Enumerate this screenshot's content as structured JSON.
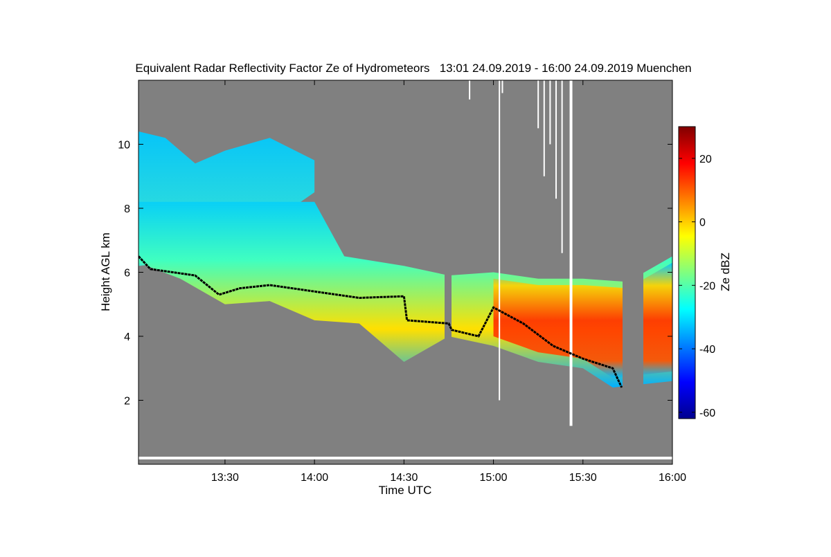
{
  "chart_data": {
    "type": "heatmap",
    "title": "Equivalent Radar Reflectivity Factor Ze of Hydrometeors   13:01 24.09.2019 - 16:00 24.09.2019 Muenchen",
    "xlabel": "Time UTC",
    "ylabel": "Height AGL km",
    "xlim": [
      "13:01",
      "16:00"
    ],
    "ylim": [
      0,
      12
    ],
    "x_ticks": [
      "13:30",
      "14:00",
      "14:30",
      "15:00",
      "15:30",
      "16:00"
    ],
    "y_ticks": [
      2,
      4,
      6,
      8,
      10
    ],
    "colorbar": {
      "label": "Ze dBZ",
      "range": [
        -62,
        30
      ],
      "ticks": [
        20,
        0,
        -20,
        -40,
        -60
      ],
      "colormap": "jet"
    },
    "background_color": "#808080",
    "cloud_top_km": [
      {
        "time": "13:01",
        "height": 10.4
      },
      {
        "time": "13:10",
        "height": 10.2
      },
      {
        "time": "13:20",
        "height": 9.4
      },
      {
        "time": "13:30",
        "height": 9.8
      },
      {
        "time": "13:45",
        "height": 10.2
      },
      {
        "time": "14:00",
        "height": 9.5
      },
      {
        "time": "14:10",
        "height": 6.5
      },
      {
        "time": "14:30",
        "height": 6.2
      },
      {
        "time": "14:45",
        "height": 5.9
      },
      {
        "time": "15:00",
        "height": 6.0
      },
      {
        "time": "15:15",
        "height": 5.8
      },
      {
        "time": "15:30",
        "height": 5.8
      },
      {
        "time": "15:45",
        "height": 5.7
      },
      {
        "time": "16:00",
        "height": 6.5
      }
    ],
    "cloud_base_km": [
      {
        "time": "13:01",
        "height": 6.3
      },
      {
        "time": "13:15",
        "height": 5.8
      },
      {
        "time": "13:30",
        "height": 5.0
      },
      {
        "time": "13:45",
        "height": 5.1
      },
      {
        "time": "14:00",
        "height": 4.5
      },
      {
        "time": "14:15",
        "height": 4.4
      },
      {
        "time": "14:30",
        "height": 3.2
      },
      {
        "time": "14:45",
        "height": 4.0
      },
      {
        "time": "15:00",
        "height": 3.7
      },
      {
        "time": "15:15",
        "height": 3.2
      },
      {
        "time": "15:30",
        "height": 3.0
      },
      {
        "time": "15:40",
        "height": 2.4
      },
      {
        "time": "16:00",
        "height": 2.6
      }
    ],
    "black_line_km": [
      {
        "time": "13:01",
        "height": 6.5
      },
      {
        "time": "13:05",
        "height": 6.1
      },
      {
        "time": "13:20",
        "height": 5.9
      },
      {
        "time": "13:28",
        "height": 5.3
      },
      {
        "time": "13:35",
        "height": 5.5
      },
      {
        "time": "13:45",
        "height": 5.6
      },
      {
        "time": "14:00",
        "height": 5.4
      },
      {
        "time": "14:15",
        "height": 5.2
      },
      {
        "time": "14:30",
        "height": 5.25
      },
      {
        "time": "14:31",
        "height": 4.5
      },
      {
        "time": "14:45",
        "height": 4.4
      },
      {
        "time": "14:46",
        "height": 4.2
      },
      {
        "time": "14:55",
        "height": 4.0
      },
      {
        "time": "15:00",
        "height": 4.9
      },
      {
        "time": "15:10",
        "height": 4.4
      },
      {
        "time": "15:20",
        "height": 3.7
      },
      {
        "time": "15:30",
        "height": 3.3
      },
      {
        "time": "15:40",
        "height": 3.0
      },
      {
        "time": "15:43",
        "height": 2.4
      }
    ]
  }
}
